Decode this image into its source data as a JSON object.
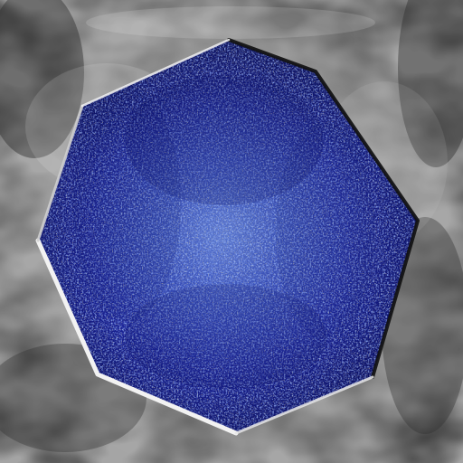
{
  "scene": {
    "subject": "octagon",
    "colors": {
      "background_light": "#d9d9d9",
      "background_mid": "#8a8a8a",
      "background_dark": "#2b2b2b",
      "shape_fill": "#1d24a8",
      "shape_fill_deep": "#0c0f6b",
      "shape_highlight": "#5f86d6",
      "rim_light": "#f2f2f2",
      "rim_dark": "#111111",
      "speckle": "#8d8a6a"
    }
  }
}
